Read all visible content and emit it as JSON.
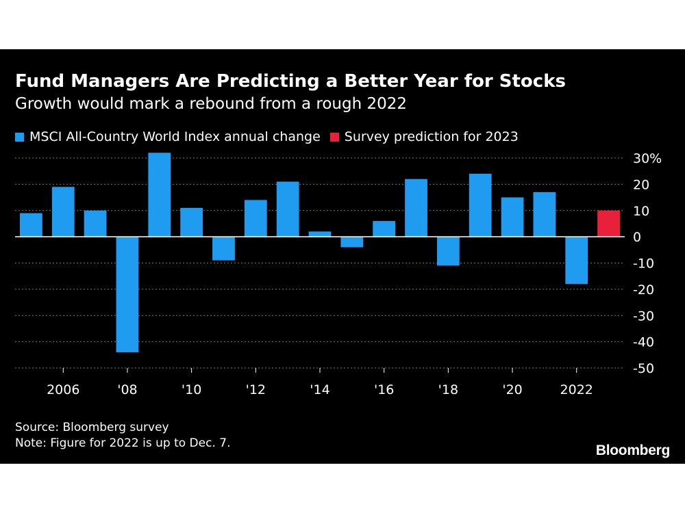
{
  "colors": {
    "background": "#000000",
    "bar": "#1f9bf0",
    "prediction": "#e8203a",
    "grid": "#7a7a7a",
    "text": "#ffffff"
  },
  "chart_data": {
    "type": "bar",
    "title": "Fund Managers Are Predicting a Better Year for Stocks",
    "subtitle": "Growth would mark a rebound from a rough 2022",
    "legend": [
      {
        "name": "MSCI All-Country World Index annual change",
        "color": "#1f9bf0"
      },
      {
        "name": "Survey prediction for 2023",
        "color": "#e8203a"
      }
    ],
    "legend_placement": "top-left",
    "grid": true,
    "categories": [
      "2005",
      "2006",
      "2007",
      "2008",
      "2009",
      "2010",
      "2011",
      "2012",
      "2013",
      "2014",
      "2015",
      "2016",
      "2017",
      "2018",
      "2019",
      "2020",
      "2021",
      "2022",
      "2023"
    ],
    "series": [
      {
        "name": "MSCI All-Country World Index annual change",
        "color": "#1f9bf0",
        "values": [
          9,
          19,
          10,
          -44,
          32,
          11,
          -9,
          14,
          21,
          2,
          -4,
          6,
          22,
          -11,
          24,
          15,
          17,
          -18,
          null
        ]
      },
      {
        "name": "Survey prediction for 2023",
        "color": "#e8203a",
        "values": [
          null,
          null,
          null,
          null,
          null,
          null,
          null,
          null,
          null,
          null,
          null,
          null,
          null,
          null,
          null,
          null,
          null,
          null,
          10
        ]
      }
    ],
    "x_tick_labels": [
      {
        "category": "2006",
        "label": "2006"
      },
      {
        "category": "2008",
        "label": "'08"
      },
      {
        "category": "2010",
        "label": "'10"
      },
      {
        "category": "2012",
        "label": "'12"
      },
      {
        "category": "2014",
        "label": "'14"
      },
      {
        "category": "2016",
        "label": "'16"
      },
      {
        "category": "2018",
        "label": "'18"
      },
      {
        "category": "2020",
        "label": "'20"
      },
      {
        "category": "2022",
        "label": "2022"
      }
    ],
    "y_ticks": [
      30,
      20,
      10,
      0,
      -10,
      -20,
      -30,
      -40,
      -50
    ],
    "y_tick_labels": [
      "30%",
      "20",
      "10",
      "0",
      "-10",
      "-20",
      "-30",
      "-40",
      "-50"
    ],
    "ylim": [
      -50,
      30
    ]
  },
  "footer": {
    "source": "Source: Bloomberg survey",
    "note": "Note: Figure for 2022 is up to Dec. 7."
  },
  "brand": "Bloomberg"
}
